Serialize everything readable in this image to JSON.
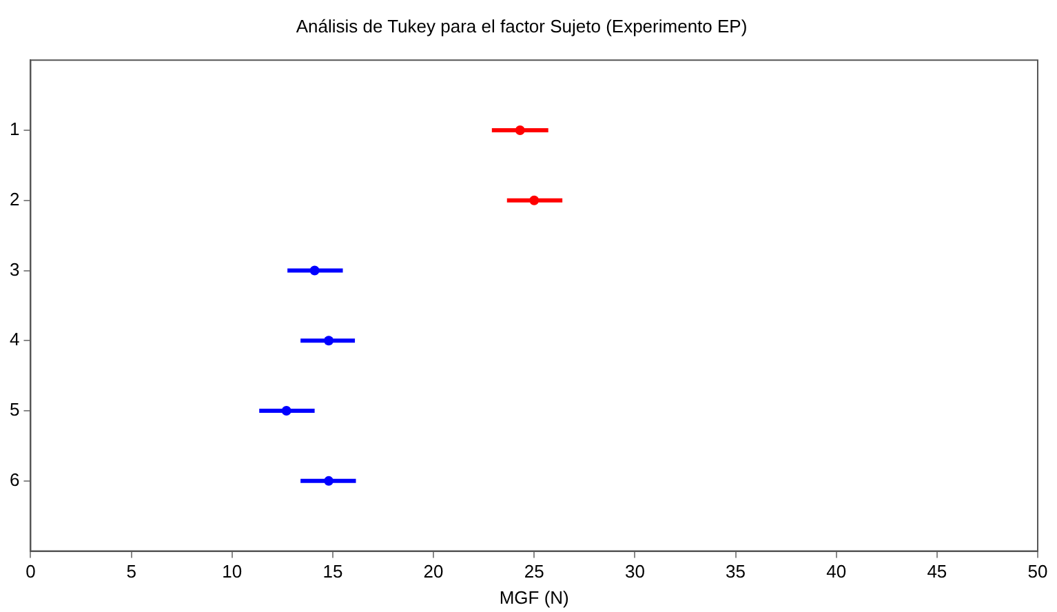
{
  "chart_data": {
    "type": "scatter",
    "title": "Análisis de Tukey para el factor Sujeto (Experimento EP)",
    "xlabel": "MGF (N)",
    "orientation": "horizontal",
    "categories": [
      "1",
      "2",
      "3",
      "4",
      "5",
      "6"
    ],
    "xlim": [
      0,
      50
    ],
    "xticks": [
      0,
      5,
      10,
      15,
      20,
      25,
      30,
      35,
      40,
      45,
      50
    ],
    "grid": false,
    "legend": false,
    "marker": "circle",
    "series": [
      {
        "color": "#ff0000",
        "values": [
          24.3,
          25.0,
          null,
          null,
          null,
          null
        ],
        "errors": [
          [
            22.9,
            25.7
          ],
          [
            23.65,
            26.4
          ],
          null,
          null,
          null,
          null
        ]
      },
      {
        "color": "#0000ff",
        "values": [
          null,
          null,
          14.1,
          14.8,
          12.7,
          14.8
        ],
        "errors": [
          null,
          null,
          [
            12.75,
            15.5
          ],
          [
            13.4,
            16.1
          ],
          [
            11.35,
            14.1
          ],
          [
            13.4,
            16.15
          ]
        ]
      }
    ]
  }
}
